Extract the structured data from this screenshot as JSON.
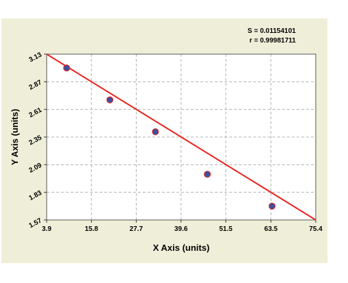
{
  "chart_data": {
    "type": "scatter",
    "title": "",
    "xlabel": "X Axis (units)",
    "ylabel": "Y Axis (units)",
    "x_ticks": [
      "3.9",
      "15.8",
      "27.7",
      "39.6",
      "51.5",
      "63.5",
      "75.4"
    ],
    "y_ticks": [
      "3.13",
      "2.87",
      "2.61",
      "2.35",
      "2.09",
      "1.83",
      "1.57"
    ],
    "xlim": [
      3.9,
      75.4
    ],
    "ylim": [
      1.57,
      3.13
    ],
    "grid": true,
    "points": [
      {
        "x": 9.2,
        "y": 3.0
      },
      {
        "x": 20.7,
        "y": 2.7
      },
      {
        "x": 32.8,
        "y": 2.4
      },
      {
        "x": 46.6,
        "y": 2.0
      },
      {
        "x": 63.8,
        "y": 1.7
      }
    ],
    "fit_line": {
      "x": [
        3.9,
        75.4
      ],
      "y": [
        3.13,
        1.57
      ]
    },
    "stats": {
      "s": "S = 0.01154101",
      "r": "r = 0.99981711"
    },
    "colors": {
      "panel": "#efefd9",
      "plot_bg": "#ffffff",
      "line": "#e8231c",
      "point": "#3f4f9e",
      "grid": "#b0b0b0"
    }
  }
}
